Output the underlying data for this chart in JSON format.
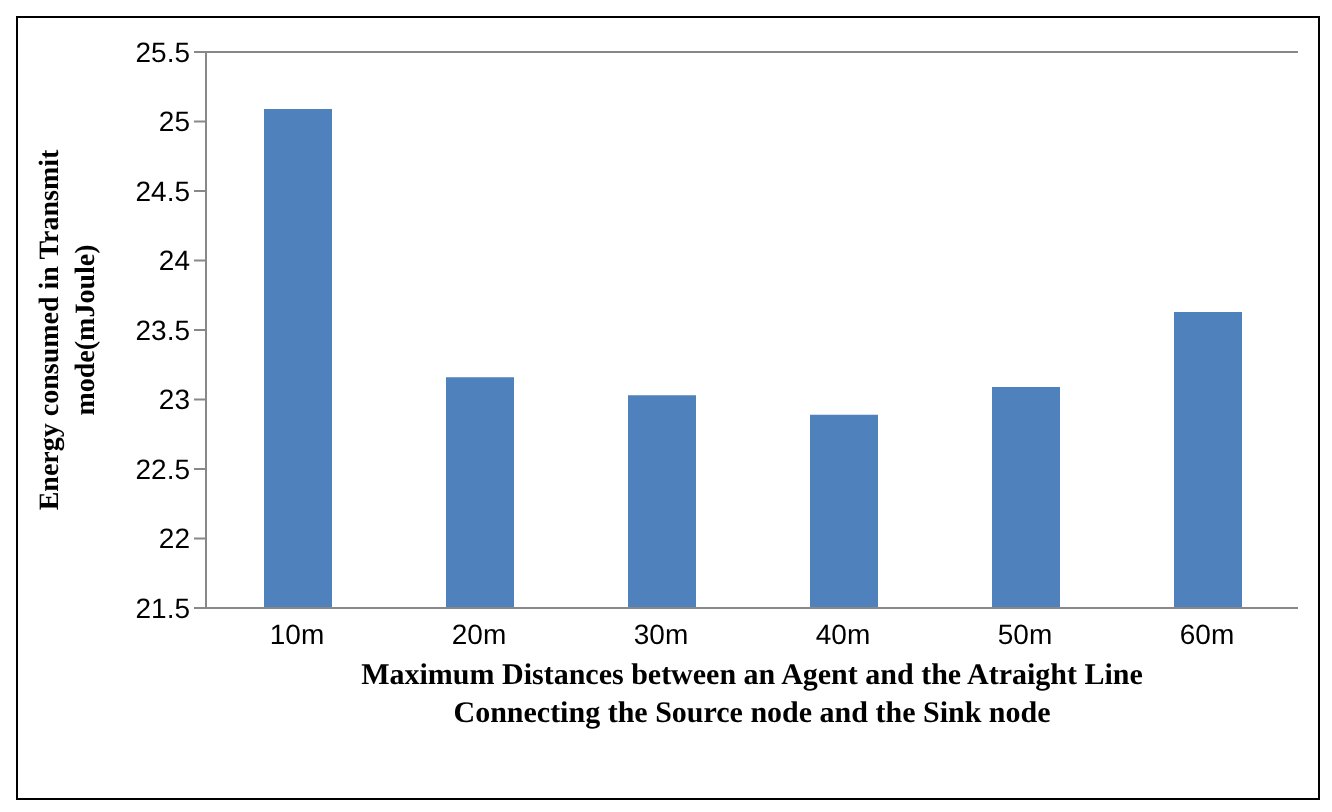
{
  "chart_data": {
    "type": "bar",
    "xlabel": "Maximum Distances between an Agent and the Atraight Line\nConnecting the Source node and the Sink node",
    "ylabel": "Energy consumed in Transmit\nmode(mJoule)",
    "categories": [
      "10m",
      "20m",
      "30m",
      "40m",
      "50m",
      "60m"
    ],
    "values": [
      25.09,
      23.16,
      23.03,
      22.89,
      23.09,
      23.63
    ],
    "color": "#4f81bd",
    "ylim": [
      21.5,
      25.5
    ],
    "yticks": [
      21.5,
      22,
      22.5,
      23,
      23.5,
      24,
      24.5,
      25,
      25.5
    ]
  }
}
